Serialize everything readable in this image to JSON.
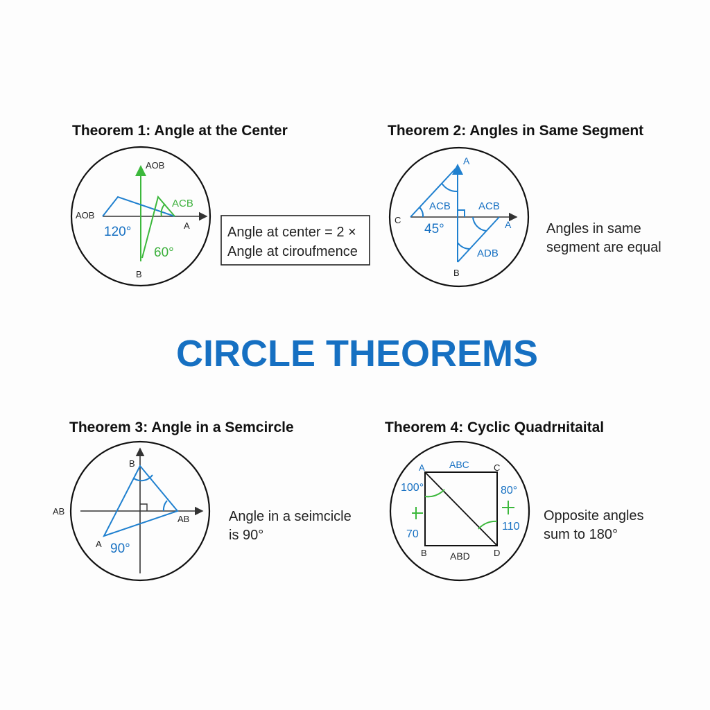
{
  "main_title": "CIRCLE THEOREMS",
  "theorem1": {
    "title": "Theorem 1: Angle at the Center",
    "labels": {
      "aob_top": "AOB",
      "aob_left": "AOB",
      "acb": "ACB",
      "a": "A",
      "b": "B",
      "angle_center": "120°",
      "angle_circ": "60°"
    },
    "note_line1": "Angle at center = 2 ×",
    "note_line2": "Angle at ciroufmence"
  },
  "theorem2": {
    "title": "Theorem 2: Angles in Same Segment",
    "labels": {
      "a_top": "A",
      "c": "C",
      "acb_left": "ACB",
      "acb_right": "ACB",
      "a_right": "A",
      "adb": "ADB",
      "b": "B",
      "angle": "45°"
    },
    "note_line1": "Angles in same",
    "note_line2": "segment are equal"
  },
  "theorem3": {
    "title": "Theorem 3: Angle in a Semcircle",
    "labels": {
      "b": "B",
      "ab_left": "AB",
      "ab_right": "AB",
      "a": "A",
      "angle": "90°"
    },
    "note_line1": "Angle in a seimcicle",
    "note_line2": "is 90°"
  },
  "theorem4": {
    "title": "Theorem 4: Cyclic Quadrнitaital",
    "labels": {
      "a": "A",
      "abc": "ABC",
      "c": "C",
      "angle_a": "100°",
      "angle_c": "80°",
      "angle_b": "70",
      "angle_d": "110",
      "b": "B",
      "abd": "ABD",
      "d": "D"
    },
    "note_line1": "Opposite angles",
    "note_line2": "sum to 180°"
  },
  "colors": {
    "title_blue": "#1670c2",
    "line_blue": "#1f80cf",
    "line_green": "#3cb83c",
    "ink": "#111111"
  }
}
